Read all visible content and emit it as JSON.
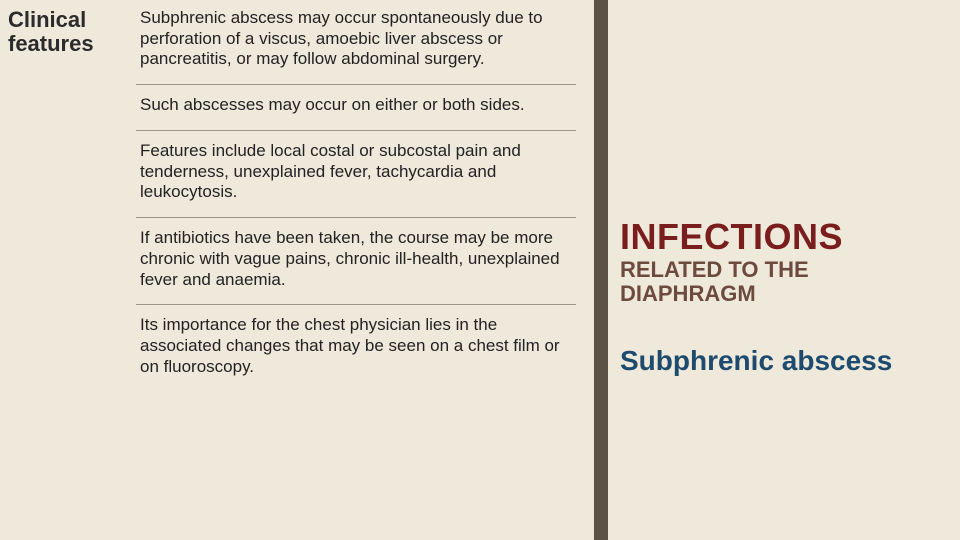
{
  "colors": {
    "background": "#efe9dc",
    "verticalStrip": "#5c5246",
    "bodyText": "#222222",
    "labelText": "#2b2b2b",
    "divider": "#9a9489",
    "titleRed": "#7a1d1d",
    "subBrown": "#6d4a3e",
    "topicBlue": "#1d4a6d"
  },
  "left": {
    "label": "Clinical features",
    "paragraphs": [
      "Subphrenic abscess may occur spontaneously due to perforation of a viscus, amoebic liver abscess or pancreatitis, or may follow abdominal surgery.",
      "Such abscesses may occur on either or both sides.",
      "Features include local costal or subcostal pain and tenderness, unexplained fever, tachycardia and leukocytosis.",
      "If antibiotics have been taken, the course may be more chronic with vague pains, chronic ill-health, unexplained fever and anaemia.",
      "Its importance for the chest physician lies in the associated changes that may be seen on a chest film or on fluoroscopy."
    ]
  },
  "right": {
    "title": "INFECTIONS",
    "subtitle": "RELATED TO THE DIAPHRAGM",
    "topic": "Subphrenic abscess"
  }
}
